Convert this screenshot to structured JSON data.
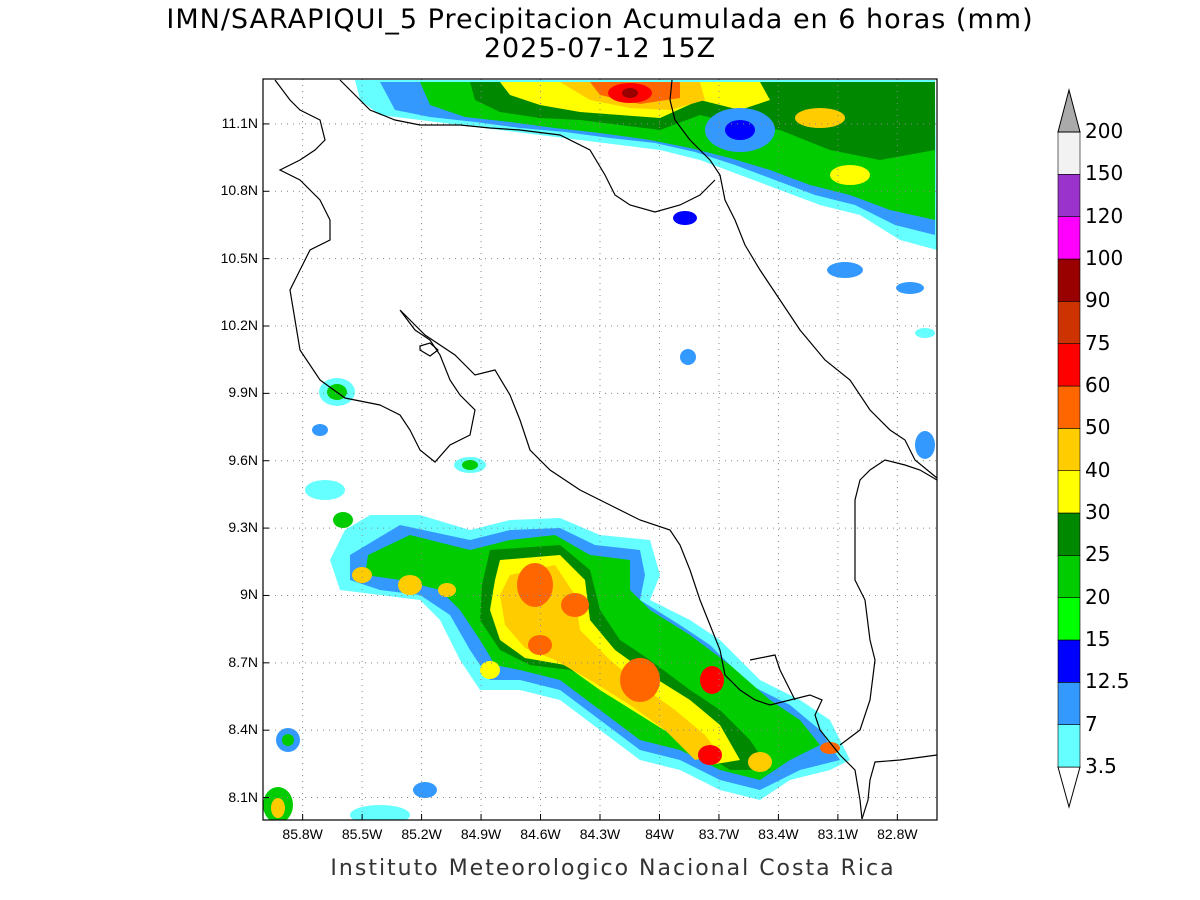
{
  "title": {
    "line1": "IMN/SARAPIQUI_5 Precipitacion Acumulada en 6 horas (mm)",
    "line2": "2025-07-12 15Z"
  },
  "footer": "Instituto Meteorologico Nacional Costa Rica",
  "map": {
    "lon_range": [
      -86.0,
      -82.6
    ],
    "lat_range": [
      8.0,
      11.3
    ],
    "lon_ticks": [
      "85.8W",
      "85.5W",
      "85.2W",
      "84.9W",
      "84.6W",
      "84.3W",
      "84W",
      "83.7W",
      "83.4W",
      "83.1W",
      "82.8W"
    ],
    "lon_tick_values": [
      -85.8,
      -85.5,
      -85.2,
      -84.9,
      -84.6,
      -84.3,
      -84.0,
      -83.7,
      -83.4,
      -83.1,
      -82.8
    ],
    "lat_ticks": [
      "11.1N",
      "10.8N",
      "10.5N",
      "10.2N",
      "9.9N",
      "9.6N",
      "9.3N",
      "9N",
      "8.7N",
      "8.4N",
      "8.1N"
    ],
    "lat_tick_values": [
      11.1,
      10.8,
      10.5,
      10.2,
      9.9,
      9.6,
      9.3,
      9.0,
      8.7,
      8.4,
      8.1
    ],
    "grid": "dotted"
  },
  "colorbar": {
    "labels": [
      "3.5",
      "7",
      "12.5",
      "15",
      "20",
      "25",
      "30",
      "40",
      "50",
      "60",
      "75",
      "90",
      "100",
      "120",
      "150",
      "200"
    ],
    "colors": [
      "#ffffff",
      "#66ffff",
      "#3399ff",
      "#0000ff",
      "#00ff00",
      "#00cc00",
      "#008800",
      "#ffff00",
      "#ffcc00",
      "#ff6600",
      "#ff0000",
      "#cc3300",
      "#990000",
      "#ff00ff",
      "#9933cc",
      "#f2f2f2",
      "#aaaaaa"
    ]
  }
}
